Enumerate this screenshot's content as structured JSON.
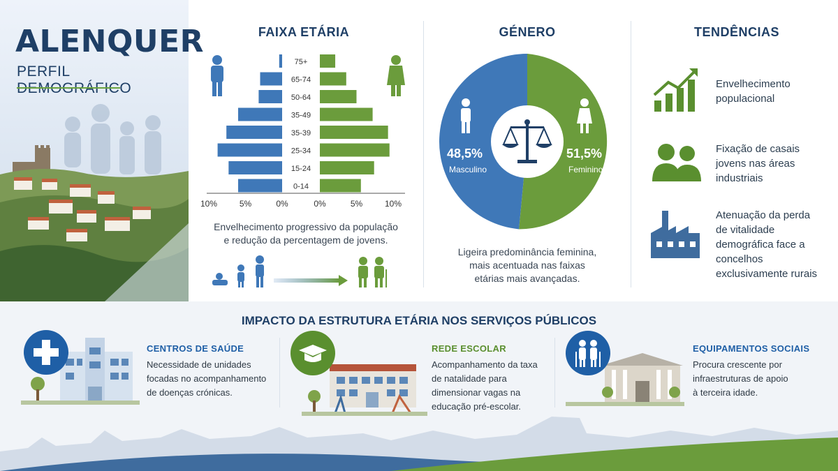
{
  "hero": {
    "title": "ALENQUER",
    "subtitle": "PERFIL DEMOGRÁFICO"
  },
  "age": {
    "heading": "FAIXA ETÁRIA",
    "groups": [
      "75+",
      "65-74",
      "50-64",
      "35-49",
      "35-39",
      "25-34",
      "15-24",
      "0-14"
    ],
    "male_pct": [
      0.4,
      3.0,
      3.2,
      6.0,
      7.6,
      8.8,
      7.3,
      6.0
    ],
    "female_pct": [
      2.1,
      3.6,
      5.0,
      7.2,
      9.3,
      9.5,
      7.4,
      5.6
    ],
    "axis_left": [
      "10%",
      "5%",
      "0%"
    ],
    "axis_right": [
      "0%",
      "5%",
      "10%"
    ],
    "caption": [
      "Envelhecimento progressivo da população",
      "e redução da percentagem de jovens."
    ]
  },
  "gender": {
    "heading": "GÉNERO",
    "male_value": "48,5%",
    "male_label": "Masculino",
    "female_value": "51,5%",
    "female_label": "Feminino",
    "male_share": 48.5,
    "female_share": 51.5,
    "caption": [
      "Ligeira predominância feminina,",
      "mais acentuada nas faixas",
      "etárias mais avançadas."
    ],
    "colors": {
      "male": "#3f78b8",
      "female": "#6b9c3c"
    }
  },
  "trends": {
    "heading": "TENDÊNCIAS",
    "items": [
      {
        "icon": "growth-chart-icon",
        "lines": [
          "Envelhecimento",
          "populacional"
        ]
      },
      {
        "icon": "couple-icon",
        "lines": [
          "Fixação de casais",
          "jovens nas áreas",
          "industriais"
        ]
      },
      {
        "icon": "factory-icon",
        "lines": [
          "Atenuação da perda",
          "de vitalidade",
          "demográfica face a",
          "concelhos",
          "exclusivamente rurais"
        ]
      }
    ]
  },
  "impact": {
    "heading": "IMPACTO DA ESTRUTURA ETÁRIA NOS SERVIÇOS PÚBLICOS",
    "cards": [
      {
        "title": "CENTROS DE SAÚDE",
        "lines": [
          "Necessidade de unidades",
          "focadas no acompanhamento",
          "de doenças crónicas."
        ],
        "color": "#1f5fa6",
        "icon": "medical-cross-icon"
      },
      {
        "title": "REDE ESCOLAR",
        "lines": [
          "Acompanhamento da taxa",
          "de natalidade para",
          "dimensionar vagas na",
          "educação pré-escolar."
        ],
        "color": "#5a8f2f",
        "icon": "graduation-cap-icon"
      },
      {
        "title": "EQUIPAMENTOS SOCIAIS",
        "lines": [
          "Procura crescente por",
          "infraestruturas de apoio",
          "à terceira idade."
        ],
        "color": "#1f5fa6",
        "icon": "elderly-couple-icon"
      }
    ]
  }
}
